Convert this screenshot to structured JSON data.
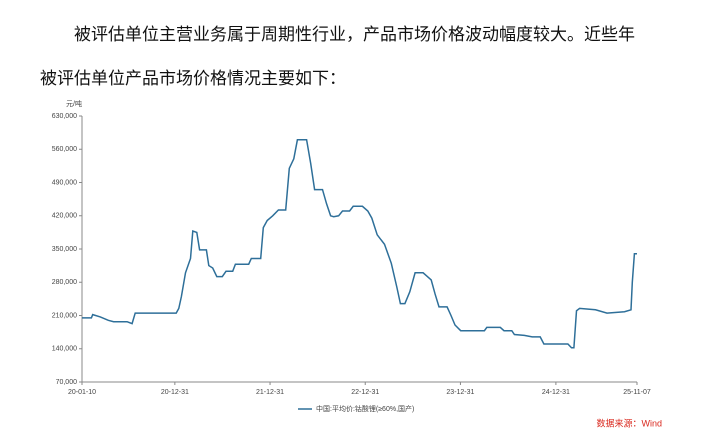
{
  "paragraph_lines": [
    "被评估单位主营业务属于周期性行业，产品市场价格波动幅度较大。近些年",
    "被评估单位产品市场价格情况主要如下："
  ],
  "chart_data": {
    "type": "line",
    "y_unit": "元/吨",
    "source": "数据来源：Wind",
    "x": [
      "20-01-10",
      "20-02-15",
      "20-02-20",
      "20-03-20",
      "20-04-20",
      "20-05-10",
      "20-07-01",
      "20-07-20",
      "20-08-01",
      "21-01-05",
      "21-01-15",
      "21-01-25",
      "21-02-10",
      "21-03-01",
      "21-03-10",
      "21-03-25",
      "21-04-05",
      "21-05-01",
      "21-05-10",
      "21-05-25",
      "21-06-10",
      "21-07-01",
      "21-07-15",
      "21-08-10",
      "21-08-20",
      "21-10-10",
      "21-10-20",
      "21-11-25",
      "21-12-05",
      "21-12-20",
      "22-01-10",
      "22-02-01",
      "22-03-01",
      "22-03-15",
      "22-04-01",
      "22-04-15",
      "22-05-20",
      "22-06-05",
      "22-06-20",
      "22-07-20",
      "22-08-05",
      "22-08-20",
      "22-09-01",
      "22-09-20",
      "22-10-05",
      "22-11-01",
      "22-11-15",
      "22-12-20",
      "23-01-10",
      "23-01-25",
      "23-02-15",
      "23-03-15",
      "23-04-10",
      "23-05-01",
      "23-05-15",
      "23-06-01",
      "23-06-20",
      "23-07-10",
      "23-08-10",
      "23-08-20",
      "23-09-10",
      "23-09-25",
      "23-10-10",
      "23-11-10",
      "23-11-25",
      "23-12-10",
      "24-01-01",
      "24-04-01",
      "24-04-10",
      "24-06-01",
      "24-06-15",
      "24-07-15",
      "24-07-25",
      "24-09-01",
      "24-10-01",
      "24-11-01",
      "24-11-15",
      "25-02-15",
      "25-03-01",
      "25-03-10",
      "25-03-20",
      "25-04-01",
      "25-06-01",
      "25-07-15",
      "25-09-20",
      "25-10-15",
      "25-10-20",
      "25-10-28",
      "25-11-07"
    ],
    "series": [
      {
        "name": "中国:平均价:钴酸锂(≥60%,国产)",
        "color": "#2e6f99",
        "values": [
          205000,
          205000,
          212000,
          207000,
          200000,
          197000,
          197000,
          193000,
          215000,
          215000,
          225000,
          250000,
          300000,
          330000,
          388000,
          385000,
          348000,
          348000,
          315000,
          310000,
          292000,
          292000,
          303000,
          303000,
          318000,
          318000,
          330000,
          330000,
          395000,
          410000,
          420000,
          432000,
          432000,
          520000,
          540000,
          580000,
          580000,
          530000,
          475000,
          475000,
          445000,
          420000,
          418000,
          420000,
          430000,
          430000,
          440000,
          440000,
          430000,
          415000,
          380000,
          360000,
          320000,
          270000,
          235000,
          235000,
          260000,
          300000,
          300000,
          295000,
          285000,
          255000,
          228000,
          228000,
          210000,
          190000,
          178000,
          178000,
          185000,
          185000,
          178000,
          178000,
          170000,
          168000,
          165000,
          165000,
          150000,
          150000,
          142000,
          142000,
          220000,
          225000,
          222000,
          215000,
          218000,
          222000,
          280000,
          340000,
          340000
        ]
      }
    ],
    "xlim": [
      "20-01-10",
      "25-11-07"
    ],
    "xticks": [
      "20-01-10",
      "20-12-31",
      "21-12-31",
      "22-12-31",
      "23-12-31",
      "24-12-31",
      "25-11-07"
    ],
    "ylim": [
      70000,
      630000
    ],
    "yticks": [
      {
        "value": 70000,
        "label": "70,000"
      },
      {
        "value": 140000,
        "label": "140,000"
      },
      {
        "value": 210000,
        "label": "210,000"
      },
      {
        "value": 280000,
        "label": "280,000"
      },
      {
        "value": 350000,
        "label": "350,000"
      },
      {
        "value": 420000,
        "label": "420,000"
      },
      {
        "value": 490000,
        "label": "490,000"
      },
      {
        "value": 560000,
        "label": "560,000"
      },
      {
        "value": 630000,
        "label": "630,000"
      }
    ],
    "grid": false
  }
}
